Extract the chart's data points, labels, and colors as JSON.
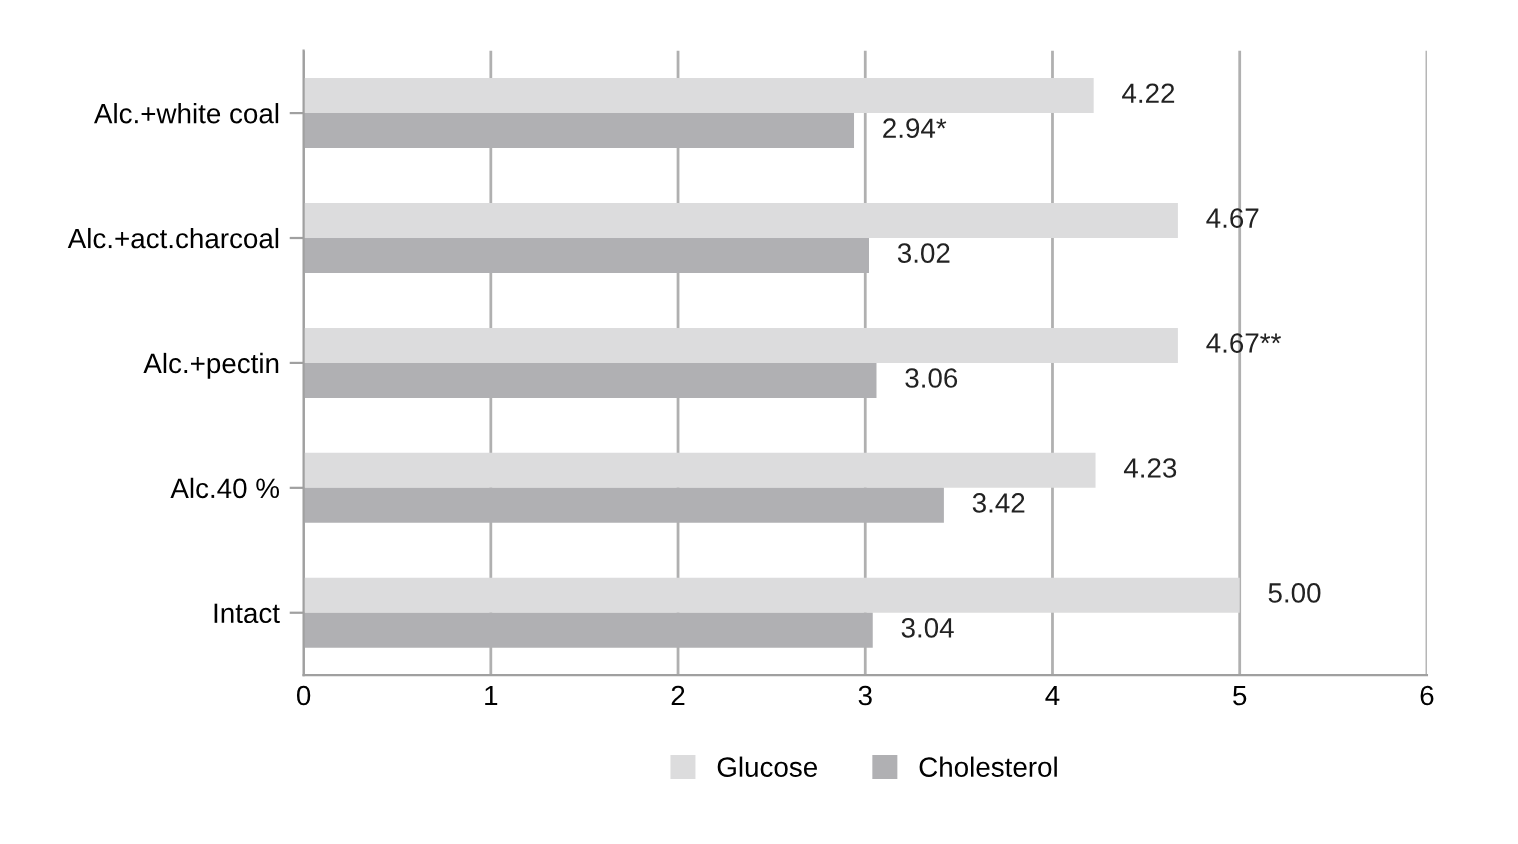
{
  "chart_data": {
    "type": "bar",
    "orientation": "horizontal",
    "categories": [
      "Alc.+white coal",
      "Alc.+act.charcoal",
      "Alc.+pectin",
      "Alc.40 %",
      "Intact"
    ],
    "series": [
      {
        "name": "Glucose",
        "color": "#dcdcdd",
        "values": [
          4.22,
          4.67,
          4.67,
          4.23,
          5.0
        ],
        "value_labels": [
          "4.22",
          "4.67",
          "4.67**",
          "4.23",
          "5.00"
        ]
      },
      {
        "name": "Cholesterol",
        "color": "#b0b0b3",
        "values": [
          2.94,
          3.02,
          3.06,
          3.42,
          3.04
        ],
        "value_labels": [
          "2.94*",
          "3.02",
          "3.06",
          "3.42",
          "3.04"
        ]
      }
    ],
    "xlim": [
      0,
      6
    ],
    "xticks": [
      0,
      1,
      2,
      3,
      4,
      5,
      6
    ],
    "grid": "x",
    "legend": "bottom"
  }
}
